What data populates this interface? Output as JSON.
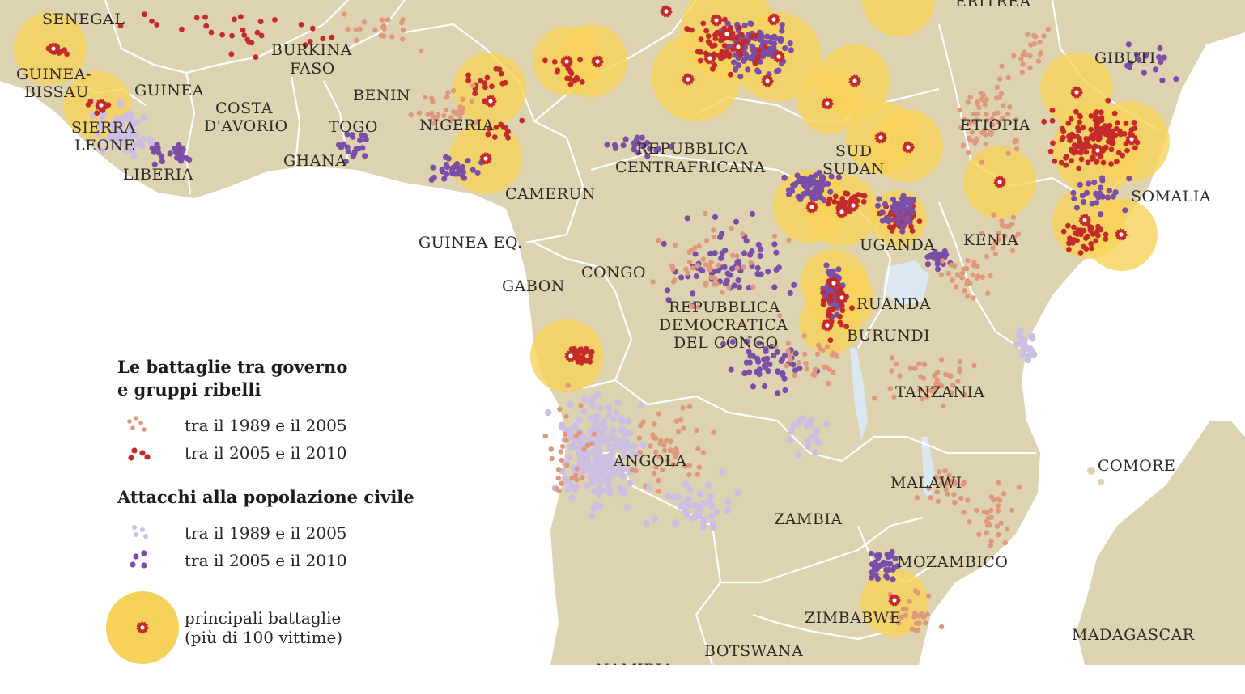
{
  "map": {
    "colors": {
      "land": "#ddd3b1",
      "sea": "#ffffff",
      "lake": "#dce8f1",
      "border": "#ffffff",
      "battle_1989_2005": "#e0987c",
      "battle_2005_2010": "#c52a2a",
      "civil_1989_2005": "#cdbfe3",
      "civil_2005_2010": "#7b4ea7",
      "major_battle_halo": "#f7d25a",
      "major_battle_marker": "#c52a2a"
    },
    "country_labels": [
      "SENEGAL",
      "GUINEA-",
      "BISSAU",
      "GUINEA",
      "SIERRA",
      "LEONE",
      "LIBERIA",
      "BURKINA",
      "FASO",
      "COSTA",
      "D'AVORIO",
      "BENIN",
      "TOGO",
      "GHANA",
      "NIGERIA",
      "ERITREA",
      "GIBUTI",
      "ETIOPIA",
      "SOMALIA",
      "SUD",
      "SUDAN",
      "REPUBBLICA",
      "CENTRAFRICANA",
      "CAMERUN",
      "GUINEA EQ.",
      "GABON",
      "CONGO",
      "REPUBBLICA",
      "DEMOCRATICA",
      "DEL CONGO",
      "UGANDA",
      "KENIA",
      "RUANDA",
      "BURUNDI",
      "TANZANIA",
      "ANGOLA",
      "MALAWI",
      "ZAMBIA",
      "MOZAMBICO",
      "ZIMBABWE",
      "BOTSWANA",
      "NAMIBIA",
      "COMORE",
      "MADAGASCAR"
    ]
  },
  "legend": {
    "battles_title_line1": "Le battaglie tra governo",
    "battles_title_line2": "e gruppi ribelli",
    "battles_1989_2005": "tra il 1989 e il 2005",
    "battles_2005_2010": "tra il 2005 e il 2010",
    "civil_title": "Attacchi alla popolazione civile",
    "civil_1989_2005": "tra il 1989 e il 2005",
    "civil_2005_2010": "tra il 2005 e il 2010",
    "major_line1": "principali battaglie",
    "major_line2": "(più di 100 vittime)"
  }
}
